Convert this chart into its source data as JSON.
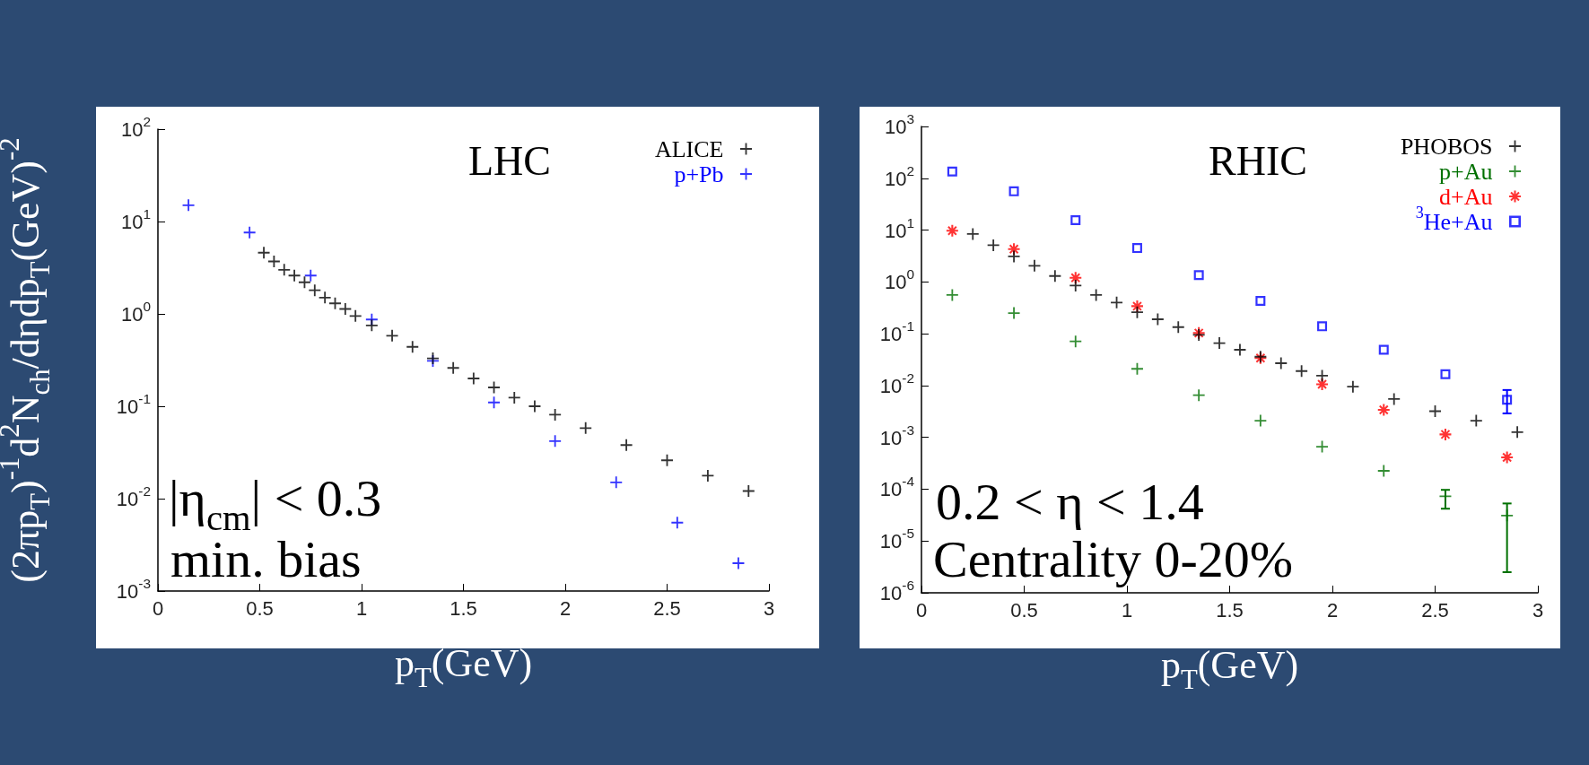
{
  "chart_data": [
    {
      "type": "scatter",
      "xlabel": "p$_{T}$(GeV)",
      "ylabel": "(2πp$_{T}$)$^{-1}$d$^{2}$N$_{ch}$/dηdp$_{T}$(GeV)$^{-2}$",
      "annotations": [
        "LHC",
        "|η$_{cm}$| < 0.3",
        "min. bias"
      ],
      "xlim": [
        0,
        3
      ],
      "xticks": [
        0,
        0.5,
        1,
        1.5,
        2,
        2.5,
        3
      ],
      "ylim": [
        0.001,
        100
      ],
      "yticks": [
        {
          "value": 0.001,
          "label": "10$^{-3}$"
        },
        {
          "value": 0.01,
          "label": "10$^{-2}$"
        },
        {
          "value": 0.1,
          "label": "10$^{-1}$"
        },
        {
          "value": 1,
          "label": "10$^{0}$"
        },
        {
          "value": 10,
          "label": "10$^{1}$"
        },
        {
          "value": 100,
          "label": "10$^{2}$"
        }
      ],
      "log": "y",
      "grid": false,
      "legend": "top right",
      "series": [
        {
          "name": "ALICE",
          "color": "#000000",
          "marker": "cross",
          "x": [
            0.52,
            0.57,
            0.62,
            0.67,
            0.72,
            0.77,
            0.82,
            0.87,
            0.92,
            0.97,
            1.05,
            1.15,
            1.25,
            1.35,
            1.45,
            1.55,
            1.65,
            1.75,
            1.85,
            1.95,
            2.1,
            2.3,
            2.5,
            2.7,
            2.9
          ],
          "values": [
            4.6,
            3.7,
            3.0,
            2.6,
            2.2,
            1.8,
            1.5,
            1.3,
            1.13,
            0.95,
            0.75,
            0.58,
            0.44,
            0.33,
            0.26,
            0.2,
            0.16,
            0.124,
            0.1,
            0.081,
            0.058,
            0.038,
            0.026,
            0.0177,
            0.0121
          ]
        },
        {
          "name": "p+Pb",
          "color": "#0000ff",
          "marker": "cross",
          "x": [
            0.15,
            0.45,
            0.75,
            1.05,
            1.35,
            1.65,
            1.95,
            2.25,
            2.55,
            2.85
          ],
          "values": [
            15,
            7.6,
            2.6,
            0.87,
            0.31,
            0.11,
            0.042,
            0.015,
            0.0055,
            0.002
          ]
        }
      ]
    },
    {
      "type": "scatter",
      "xlabel": "p$_{T}$(GeV)",
      "annotations": [
        "RHIC",
        "0.2 < η < 1.4",
        "Centrality 0-20%"
      ],
      "xlim": [
        0,
        3
      ],
      "xticks": [
        0,
        0.5,
        1,
        1.5,
        2,
        2.5,
        3
      ],
      "ylim": [
        1e-06,
        1000
      ],
      "yticks": [
        {
          "value": 1e-06,
          "label": "10$^{-6}$"
        },
        {
          "value": 1e-05,
          "label": "10$^{-5}$"
        },
        {
          "value": 0.0001,
          "label": "10$^{-4}$"
        },
        {
          "value": 0.001,
          "label": "10$^{-3}$"
        },
        {
          "value": 0.01,
          "label": "10$^{-2}$"
        },
        {
          "value": 0.1,
          "label": "10$^{-1}$"
        },
        {
          "value": 1,
          "label": "10$^{0}$"
        },
        {
          "value": 10,
          "label": "10$^{1}$"
        },
        {
          "value": 100,
          "label": "10$^{2}$"
        },
        {
          "value": 1000,
          "label": "10$^{3}$"
        }
      ],
      "log": "y",
      "grid": false,
      "legend": "top right",
      "series": [
        {
          "name": "PHOBOS",
          "color": "#000000",
          "marker": "cross",
          "x": [
            0.25,
            0.35,
            0.45,
            0.55,
            0.65,
            0.75,
            0.85,
            0.95,
            1.05,
            1.15,
            1.25,
            1.35,
            1.45,
            1.55,
            1.65,
            1.75,
            1.85,
            1.95,
            2.1,
            2.3,
            2.5,
            2.7,
            2.9
          ],
          "values": [
            8.4,
            5.1,
            3.1,
            2.05,
            1.3,
            0.85,
            0.56,
            0.4,
            0.26,
            0.19,
            0.134,
            0.095,
            0.066,
            0.049,
            0.036,
            0.027,
            0.019,
            0.0155,
            0.0095,
            0.0055,
            0.0032,
            0.0021,
            0.00126
          ]
        },
        {
          "name": "p+Au",
          "color": "#007000",
          "marker": "cross",
          "x": [
            0.15,
            0.45,
            0.75,
            1.05,
            1.35,
            1.65,
            1.95,
            2.25,
            2.55,
            2.85
          ],
          "values": [
            0.56,
            0.25,
            0.071,
            0.021,
            0.0065,
            0.0021,
            0.00066,
            0.000226,
            7.3e-05,
            3.1e-05
          ],
          "errors": [
            null,
            null,
            null,
            null,
            null,
            null,
            null,
            null,
            [
              4.2e-05,
              9.7e-05
            ],
            [
              2.5e-06,
              5.3e-05
            ]
          ]
        },
        {
          "name": "d+Au",
          "color": "#ff0000",
          "marker": "star",
          "x": [
            0.15,
            0.45,
            0.75,
            1.05,
            1.35,
            1.65,
            1.95,
            2.25,
            2.55,
            2.85
          ],
          "values": [
            9.7,
            4.3,
            1.2,
            0.34,
            0.103,
            0.034,
            0.0106,
            0.0034,
            0.00114,
            0.00041
          ]
        },
        {
          "name": "$^{3}$He+Au",
          "color": "#0000ff",
          "marker": "square",
          "x": [
            0.15,
            0.45,
            0.75,
            1.05,
            1.35,
            1.65,
            1.95,
            2.25,
            2.55,
            2.85
          ],
          "values": [
            135,
            56,
            15.5,
            4.5,
            1.35,
            0.43,
            0.139,
            0.049,
            0.0165,
            0.0053
          ],
          "errors": [
            null,
            null,
            null,
            null,
            null,
            null,
            null,
            null,
            null,
            [
              0.0029,
              0.0082
            ]
          ]
        }
      ]
    }
  ]
}
